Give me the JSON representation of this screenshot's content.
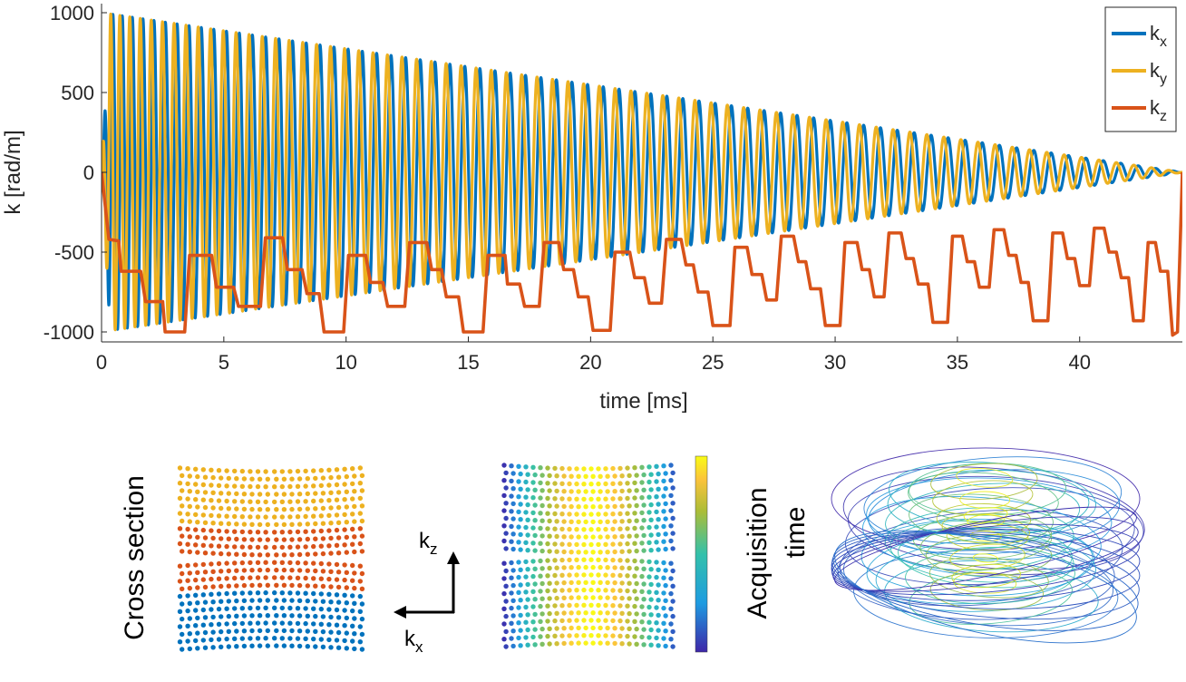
{
  "chart_data": [
    {
      "type": "line",
      "title": "",
      "xlabel": "time [ms]",
      "ylabel": "k [rad/m]",
      "xlim": [
        0,
        44.2
      ],
      "ylim": [
        -1050,
        1000
      ],
      "xticks": [
        0,
        5,
        10,
        15,
        20,
        25,
        30,
        35,
        40
      ],
      "yticks": [
        1000,
        500,
        0,
        -500,
        -1000
      ],
      "grid": false,
      "legend_position": "top-right",
      "series": [
        {
          "name": "k",
          "sub": "x",
          "color": "#0072BD",
          "model": "sine",
          "amplitude_start": 1000,
          "amplitude_end": 0,
          "phase": "cosine-like",
          "cycles": 72
        },
        {
          "name": "k",
          "sub": "y",
          "color": "#EDB120",
          "model": "sine",
          "amplitude_start": 1000,
          "amplitude_end": 0,
          "phase": "sine-like",
          "cycles": 72
        },
        {
          "name": "k",
          "sub": "z",
          "color": "#D95319",
          "model": "steps",
          "points": [
            [
              0,
              0
            ],
            [
              0.3,
              -420
            ],
            [
              0.7,
              -430
            ],
            [
              0.8,
              -620
            ],
            [
              1.6,
              -620
            ],
            [
              1.8,
              -810
            ],
            [
              2.5,
              -810
            ],
            [
              2.6,
              -1000
            ],
            [
              3.4,
              -1000
            ],
            [
              3.6,
              -520
            ],
            [
              4.5,
              -520
            ],
            [
              4.7,
              -720
            ],
            [
              5.4,
              -720
            ],
            [
              5.6,
              -840
            ],
            [
              6.5,
              -840
            ],
            [
              6.7,
              -410
            ],
            [
              7.4,
              -410
            ],
            [
              7.6,
              -610
            ],
            [
              8.2,
              -610
            ],
            [
              8.4,
              -760
            ],
            [
              8.9,
              -760
            ],
            [
              9.1,
              -1000
            ],
            [
              9.9,
              -1000
            ],
            [
              10.1,
              -520
            ],
            [
              10.8,
              -520
            ],
            [
              11.0,
              -690
            ],
            [
              11.5,
              -690
            ],
            [
              11.7,
              -840
            ],
            [
              12.4,
              -840
            ],
            [
              12.6,
              -440
            ],
            [
              13.3,
              -440
            ],
            [
              13.5,
              -610
            ],
            [
              13.9,
              -610
            ],
            [
              14.1,
              -780
            ],
            [
              14.6,
              -780
            ],
            [
              14.8,
              -1000
            ],
            [
              15.6,
              -1000
            ],
            [
              15.8,
              -520
            ],
            [
              16.5,
              -520
            ],
            [
              16.6,
              -700
            ],
            [
              17.1,
              -700
            ],
            [
              17.3,
              -840
            ],
            [
              17.9,
              -840
            ],
            [
              18.1,
              -440
            ],
            [
              18.7,
              -440
            ],
            [
              18.9,
              -610
            ],
            [
              19.3,
              -610
            ],
            [
              19.5,
              -780
            ],
            [
              19.9,
              -780
            ],
            [
              20.1,
              -990
            ],
            [
              20.8,
              -990
            ],
            [
              21.0,
              -500
            ],
            [
              21.6,
              -500
            ],
            [
              21.8,
              -660
            ],
            [
              22.2,
              -660
            ],
            [
              22.4,
              -820
            ],
            [
              22.9,
              -820
            ],
            [
              23.1,
              -420
            ],
            [
              23.7,
              -420
            ],
            [
              23.9,
              -580
            ],
            [
              24.2,
              -580
            ],
            [
              24.4,
              -750
            ],
            [
              24.8,
              -750
            ],
            [
              25.0,
              -960
            ],
            [
              25.7,
              -960
            ],
            [
              25.9,
              -470
            ],
            [
              26.4,
              -470
            ],
            [
              26.6,
              -640
            ],
            [
              27.0,
              -640
            ],
            [
              27.2,
              -800
            ],
            [
              27.6,
              -800
            ],
            [
              27.8,
              -400
            ],
            [
              28.3,
              -400
            ],
            [
              28.5,
              -560
            ],
            [
              28.8,
              -560
            ],
            [
              29.0,
              -730
            ],
            [
              29.4,
              -730
            ],
            [
              29.6,
              -960
            ],
            [
              30.2,
              -960
            ],
            [
              30.4,
              -440
            ],
            [
              30.9,
              -440
            ],
            [
              31.1,
              -610
            ],
            [
              31.4,
              -610
            ],
            [
              31.6,
              -780
            ],
            [
              32.0,
              -780
            ],
            [
              32.2,
              -380
            ],
            [
              32.7,
              -380
            ],
            [
              32.9,
              -540
            ],
            [
              33.2,
              -540
            ],
            [
              33.4,
              -700
            ],
            [
              33.8,
              -700
            ],
            [
              34.0,
              -940
            ],
            [
              34.6,
              -940
            ],
            [
              34.8,
              -400
            ],
            [
              35.2,
              -400
            ],
            [
              35.4,
              -560
            ],
            [
              35.7,
              -560
            ],
            [
              35.9,
              -720
            ],
            [
              36.3,
              -720
            ],
            [
              36.5,
              -360
            ],
            [
              36.9,
              -360
            ],
            [
              37.1,
              -520
            ],
            [
              37.4,
              -520
            ],
            [
              37.6,
              -690
            ],
            [
              37.9,
              -690
            ],
            [
              38.1,
              -930
            ],
            [
              38.7,
              -930
            ],
            [
              38.9,
              -380
            ],
            [
              39.3,
              -380
            ],
            [
              39.5,
              -540
            ],
            [
              39.8,
              -540
            ],
            [
              40.0,
              -710
            ],
            [
              40.4,
              -710
            ],
            [
              40.6,
              -350
            ],
            [
              41.0,
              -350
            ],
            [
              41.2,
              -500
            ],
            [
              41.5,
              -500
            ],
            [
              41.7,
              -660
            ],
            [
              42.0,
              -660
            ],
            [
              42.2,
              -930
            ],
            [
              42.6,
              -930
            ],
            [
              42.8,
              -440
            ],
            [
              43.1,
              -440
            ],
            [
              43.3,
              -620
            ],
            [
              43.6,
              -620
            ],
            [
              43.8,
              -1020
            ],
            [
              44.0,
              -1000
            ],
            [
              44.2,
              0
            ]
          ]
        }
      ]
    },
    {
      "type": "scatter",
      "side_label": "Cross section",
      "colors": [
        "#EDB120",
        "#D95319",
        "#0072BD"
      ]
    },
    {
      "type": "scatter",
      "colorbar_label_line1": "Acquisition",
      "colorbar_label_line2": "time",
      "colormap": [
        "#3E26A8",
        "#1E9BE1",
        "#33C1AA",
        "#ACBD37",
        "#FBC33B",
        "#F9FB15"
      ]
    },
    {
      "type": "line",
      "description_free": true,
      "colormap": [
        "#3E26A8",
        "#1E9BE1",
        "#33C1AA",
        "#ACBD37",
        "#F9FB15"
      ]
    }
  ],
  "arrows": {
    "kz_base": "k",
    "kz_sub": "z",
    "kx_base": "k",
    "kx_sub": "x"
  }
}
